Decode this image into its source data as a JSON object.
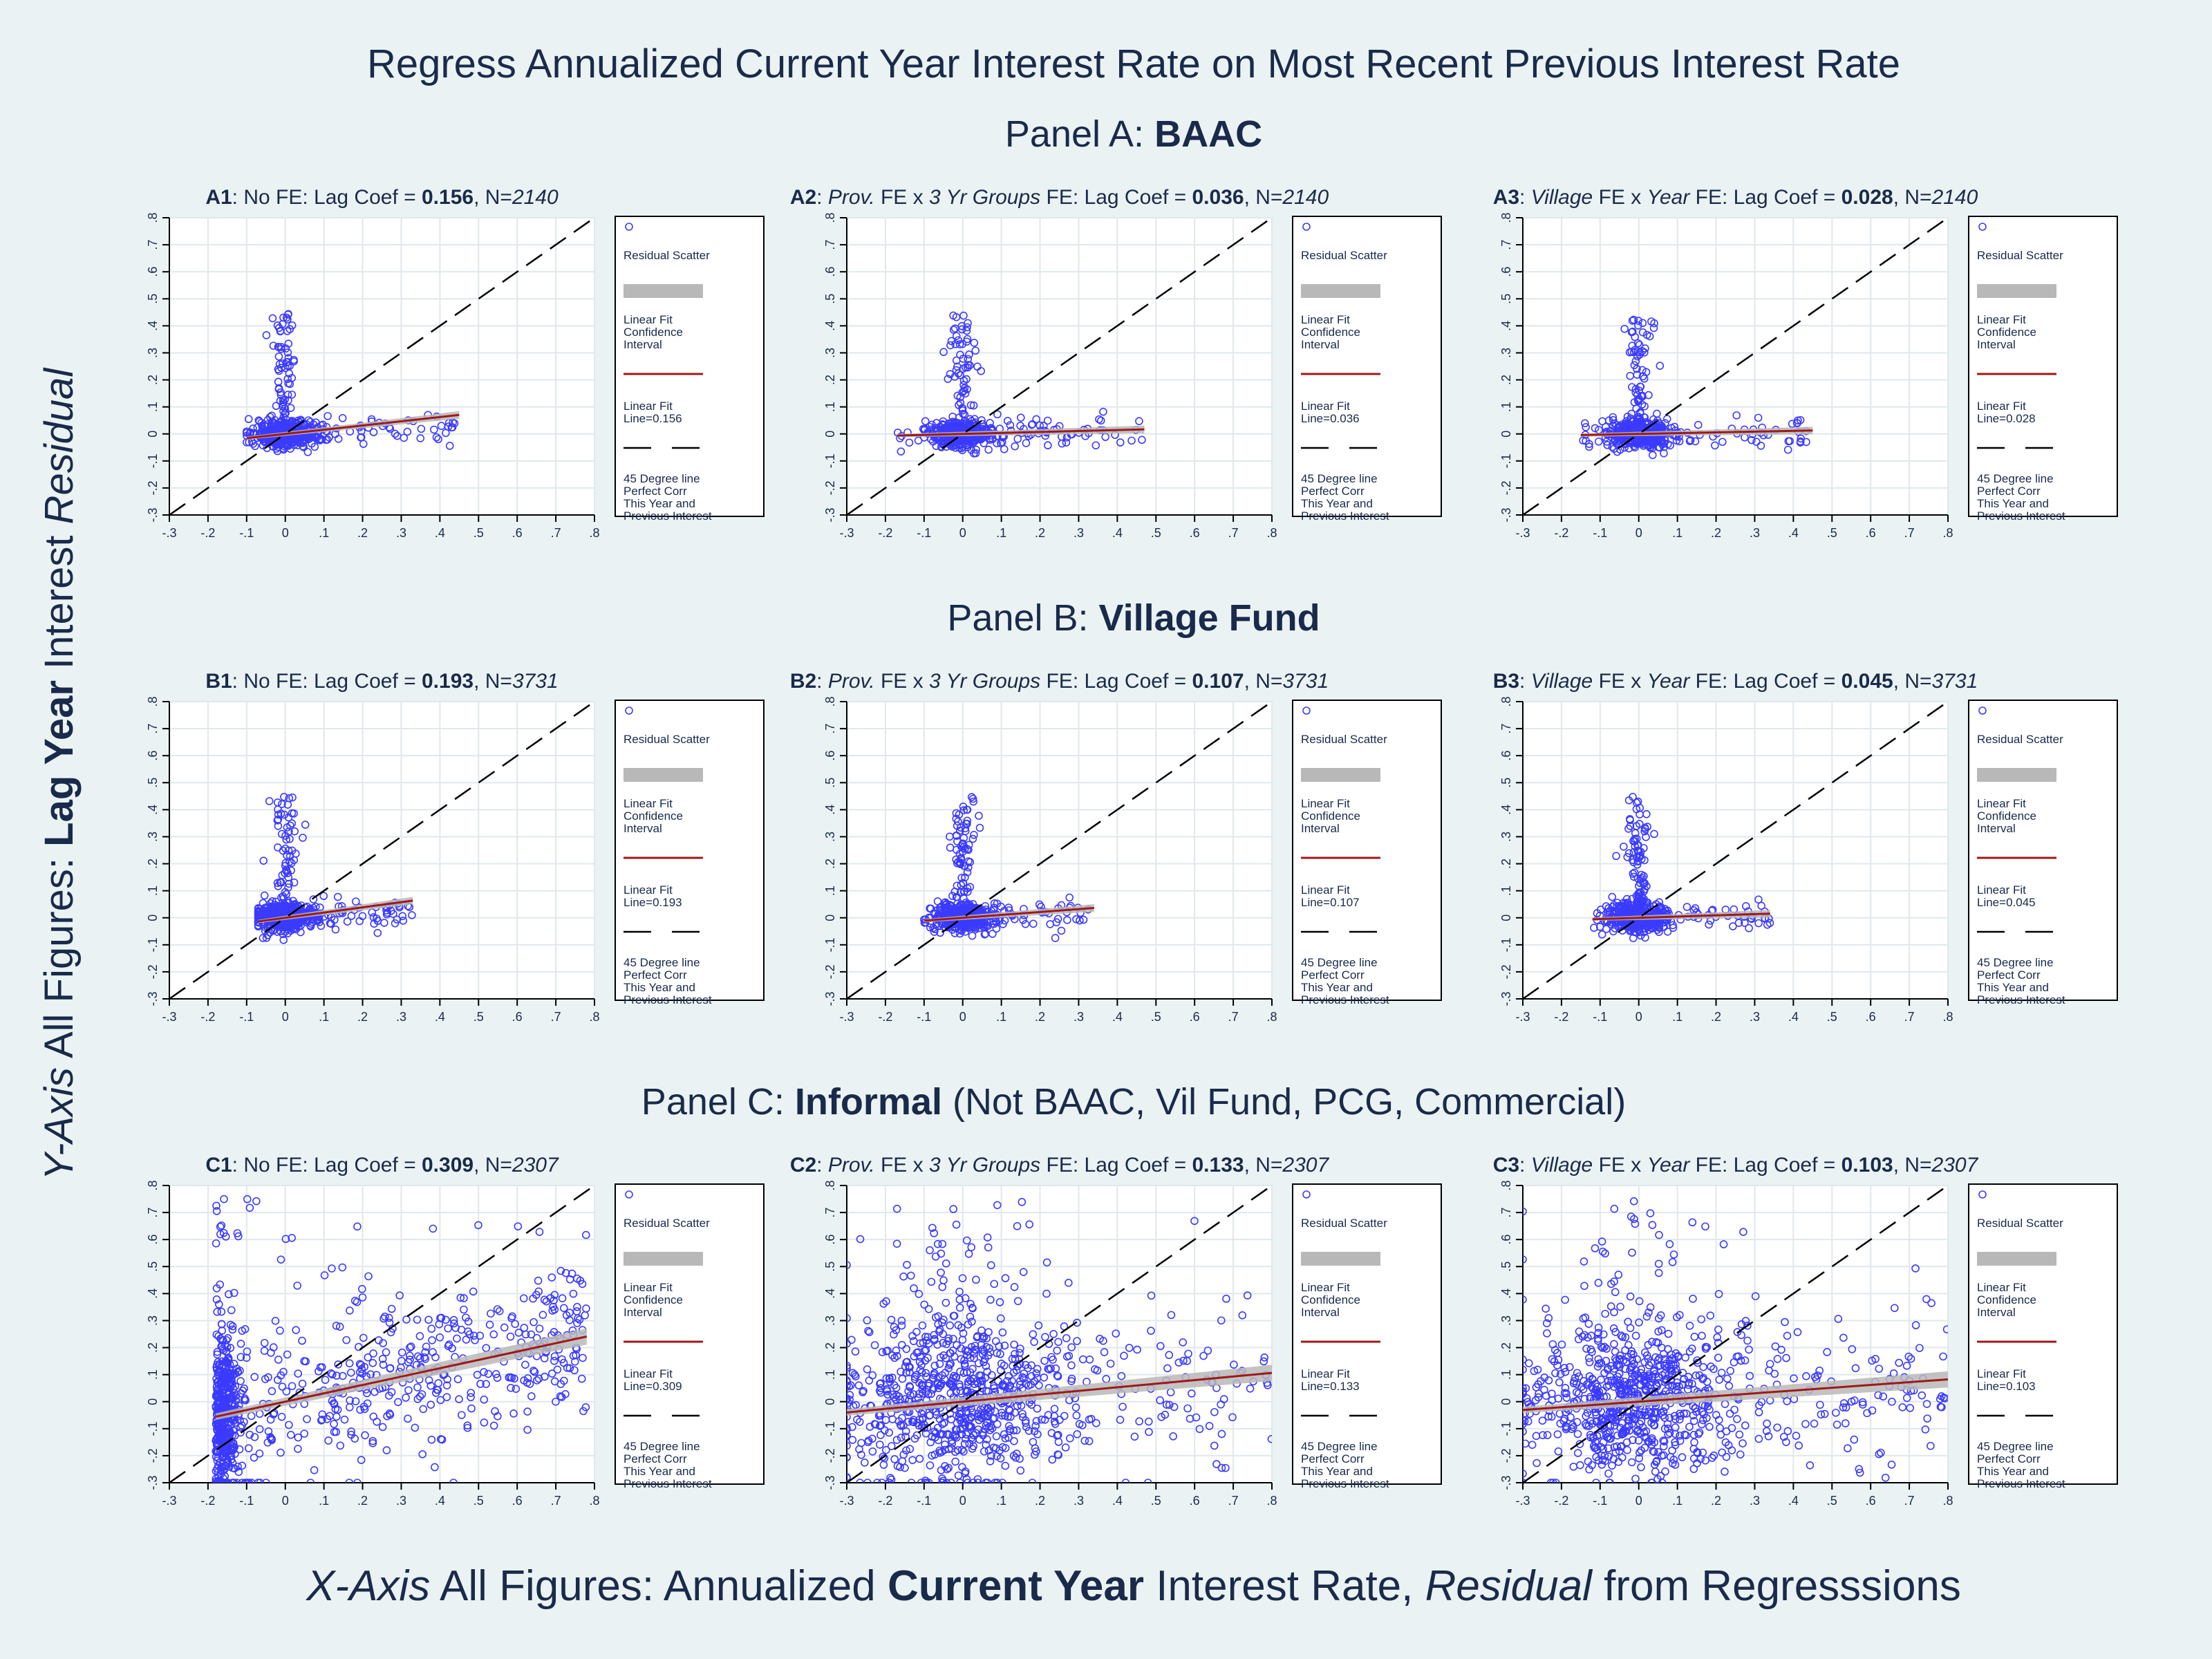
{
  "title": "Regress Annualized Current Year Interest Rate on Most Recent Previous Interest Rate",
  "y_axis_label": {
    "pre": "Y-Axis",
    "mid": " All Figures: ",
    "bold": "Lag Year",
    "mid2": " Interest ",
    "post": "Residual"
  },
  "x_axis_label": {
    "pre": "X-Axis",
    "mid": " All Figures: Annualized ",
    "bold": "Current Year",
    "mid2": " Interest Rate, ",
    "ital": "Residual",
    "post": " from Regresssions"
  },
  "ticks": [
    "-.3",
    "-.2",
    "-.1",
    "0",
    ".1",
    ".2",
    ".3",
    ".4",
    ".5",
    ".6",
    ".7",
    ".8"
  ],
  "legend": {
    "scatter": "Residual Scatter",
    "ci": [
      "Linear Fit",
      "Confidence",
      "Interval"
    ],
    "fit_prefix": "Linear Fit",
    "deg45": [
      "45 Degree line",
      "Perfect Corr",
      "This Year and",
      "Previous Interest"
    ]
  },
  "colors": {
    "points": "#3b3bff",
    "fit": "#a01818",
    "ci": "#b8b8b8",
    "ink": "#1a2a4a",
    "grid": "#dfe8ec"
  },
  "panels": [
    {
      "label_pre": "Panel A: ",
      "label_bold": "BAAC",
      "label_post": ""
    },
    {
      "label_pre": "Panel B: ",
      "label_bold": "Village Fund",
      "label_post": ""
    },
    {
      "label_pre": "Panel C: ",
      "label_bold": "Informal",
      "label_post": " (Not BAAC, Vil Fund, PCG, Commercial)"
    }
  ],
  "chart_data": [
    {
      "type": "scatter",
      "id": "A1",
      "fe_desc": "No FE",
      "coef": "0.156",
      "n": "2140",
      "fit_label": "Line=0.156",
      "slope": 0.156,
      "intercept": 0.0,
      "x_range": [
        -0.1,
        0.45
      ],
      "y_spread": 0.04,
      "xlim": [
        -0.3,
        0.8
      ],
      "ylim": [
        -0.3,
        0.8
      ]
    },
    {
      "type": "scatter",
      "id": "A2",
      "fe_desc": "Prov. FE x 3 Yr Groups FE",
      "coef": "0.036",
      "n": "2140",
      "fit_label": "Line=0.036",
      "slope": 0.036,
      "intercept": 0.0,
      "x_range": [
        -0.17,
        0.47
      ],
      "y_spread": 0.04,
      "xlim": [
        -0.3,
        0.8
      ],
      "ylim": [
        -0.3,
        0.8
      ]
    },
    {
      "type": "scatter",
      "id": "A3",
      "fe_desc": "Village FE x Year FE",
      "coef": "0.028",
      "n": "2140",
      "fit_label": "Line=0.028",
      "slope": 0.028,
      "intercept": 0.0,
      "x_range": [
        -0.15,
        0.45
      ],
      "y_spread": 0.035,
      "xlim": [
        -0.3,
        0.8
      ],
      "ylim": [
        -0.3,
        0.8
      ]
    },
    {
      "type": "scatter",
      "id": "B1",
      "fe_desc": "No FE",
      "coef": "0.193",
      "n": "3731",
      "fit_label": "Line=0.193",
      "slope": 0.193,
      "intercept": 0.0,
      "x_range": [
        -0.07,
        0.33
      ],
      "y_spread": 0.03,
      "xlim": [
        -0.3,
        0.8
      ],
      "ylim": [
        -0.3,
        0.8
      ]
    },
    {
      "type": "scatter",
      "id": "B2",
      "fe_desc": "Prov. FE x 3 Yr Groups FE",
      "coef": "0.107",
      "n": "3731",
      "fit_label": "Line=0.107",
      "slope": 0.107,
      "intercept": 0.0,
      "x_range": [
        -0.1,
        0.34
      ],
      "y_spread": 0.025,
      "xlim": [
        -0.3,
        0.8
      ],
      "ylim": [
        -0.3,
        0.8
      ]
    },
    {
      "type": "scatter",
      "id": "B3",
      "fe_desc": "Village FE x Year FE",
      "coef": "0.045",
      "n": "3731",
      "fit_label": "Line=0.045",
      "slope": 0.045,
      "intercept": 0.0,
      "x_range": [
        -0.12,
        0.34
      ],
      "y_spread": 0.02,
      "xlim": [
        -0.3,
        0.8
      ],
      "ylim": [
        -0.3,
        0.8
      ]
    },
    {
      "type": "scatter",
      "id": "C1",
      "fe_desc": "No FE",
      "coef": "0.309",
      "n": "2307",
      "fit_label": "Line=0.309",
      "slope": 0.309,
      "intercept": 0.0,
      "x_range": [
        -0.18,
        0.78
      ],
      "y_spread": 0.16,
      "xlim": [
        -0.3,
        0.8
      ],
      "ylim": [
        -0.3,
        0.8
      ]
    },
    {
      "type": "scatter",
      "id": "C2",
      "fe_desc": "Prov. FE x 3 Yr Groups FE",
      "coef": "0.133",
      "n": "2307",
      "fit_label": "Line=0.133",
      "slope": 0.133,
      "intercept": 0.0,
      "x_range": [
        -0.3,
        0.8
      ],
      "y_spread": 0.15,
      "xlim": [
        -0.3,
        0.8
      ],
      "ylim": [
        -0.3,
        0.8
      ]
    },
    {
      "type": "scatter",
      "id": "C3",
      "fe_desc": "Village FE x Year FE",
      "coef": "0.103",
      "n": "2307",
      "fit_label": "Line=0.103",
      "slope": 0.103,
      "intercept": 0.0,
      "x_range": [
        -0.3,
        0.8
      ],
      "y_spread": 0.14,
      "xlim": [
        -0.3,
        0.8
      ],
      "ylim": [
        -0.3,
        0.8
      ]
    }
  ]
}
